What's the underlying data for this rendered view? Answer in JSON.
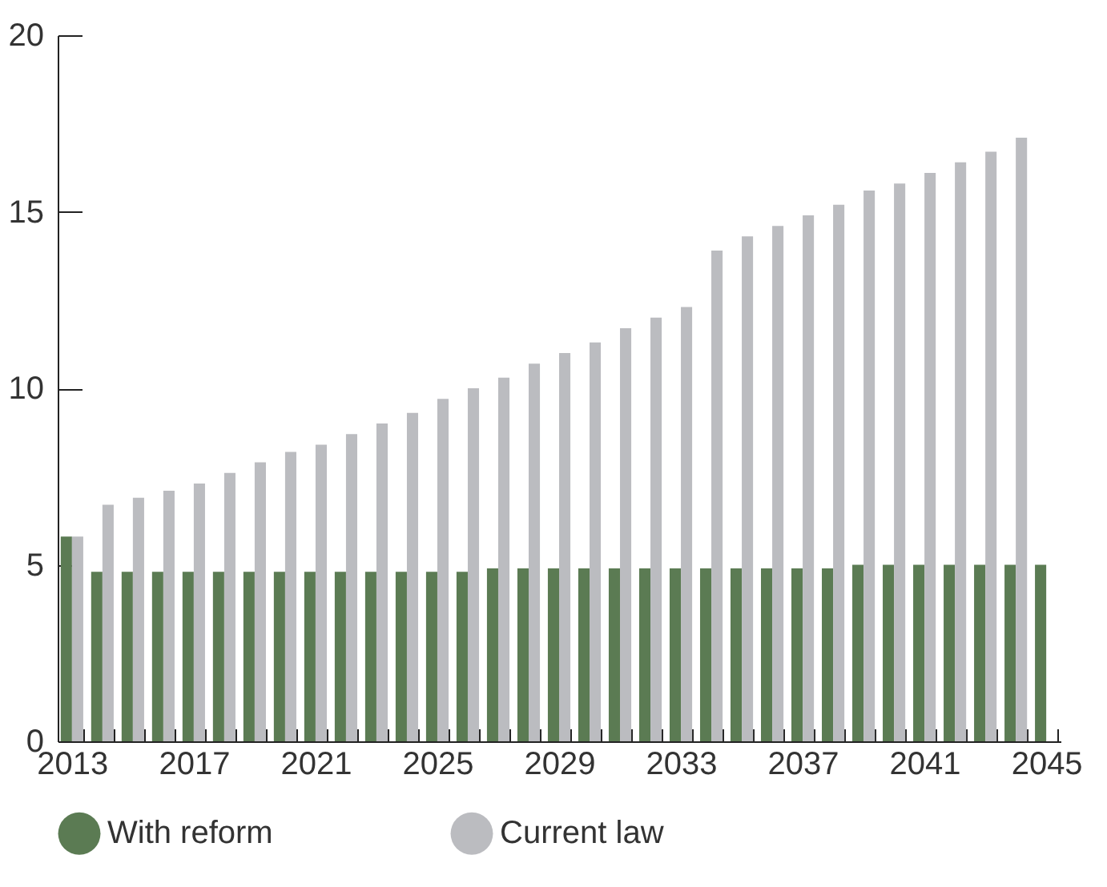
{
  "chart_data": {
    "type": "bar",
    "categories": [
      "2013",
      null,
      null,
      null,
      "2017",
      null,
      null,
      null,
      "2021",
      null,
      null,
      null,
      "2025",
      null,
      null,
      null,
      "2029",
      null,
      null,
      null,
      "2033",
      null,
      null,
      null,
      "2037",
      null,
      null,
      null,
      "2041",
      null,
      null,
      null,
      "2045"
    ],
    "series": [
      {
        "name": "With reform",
        "color": "#5b7b53",
        "values": [
          5.8,
          4.8,
          4.8,
          4.8,
          4.8,
          4.8,
          4.8,
          4.8,
          4.8,
          4.8,
          4.8,
          4.8,
          4.8,
          4.8,
          4.9,
          4.9,
          4.9,
          4.9,
          4.9,
          4.9,
          4.9,
          4.9,
          4.9,
          4.9,
          4.9,
          4.9,
          5.0,
          5.0,
          5.0,
          5.0,
          5.0,
          5.0,
          5.0
        ]
      },
      {
        "name": "Current law",
        "color": "#bbbcc0",
        "values": [
          5.8,
          6.7,
          6.9,
          7.1,
          7.3,
          7.6,
          7.9,
          8.2,
          8.4,
          8.7,
          9.0,
          9.3,
          9.7,
          10.0,
          10.3,
          10.7,
          11.0,
          11.3,
          11.7,
          12.0,
          12.3,
          13.9,
          14.3,
          14.6,
          14.9,
          15.2,
          15.6,
          15.8,
          16.1,
          16.4,
          16.7,
          17.1,
          null
        ]
      }
    ],
    "ylim": [
      0,
      20
    ],
    "yticks": [
      0,
      5,
      10,
      15,
      20
    ],
    "legend": "bottom"
  }
}
